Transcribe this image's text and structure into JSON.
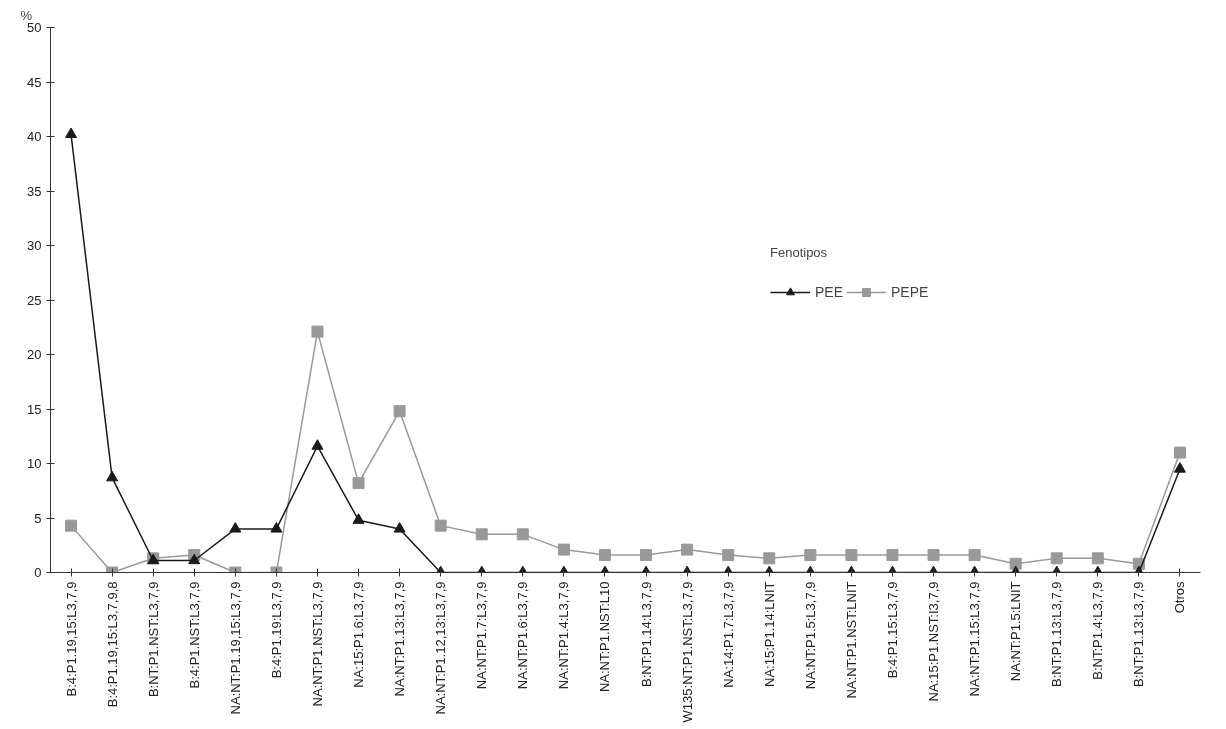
{
  "chart_data": {
    "type": "line",
    "ylabel": "%",
    "legend_title": "Fenotipos",
    "legend": "right",
    "grid": false,
    "categories": [
      "B:4:P1.19,15:L3,7,9",
      "B:4:P1.19,15:L3,7,9,8",
      "B:NT:P1.NST:L3,7,9",
      "B:4:P1.NST:L3,7,9",
      "NA:NT:P1.19,15:L3,7,9",
      "B:4:P1.19:L3,7,9",
      "NA:NT:P1.NST:L3,7,9",
      "NA:15:P1.6:L3,7,9",
      "NA:NT:P1.13:L3,7,9",
      "NA:NT:P1.12,13:L3,7,9",
      "NA:NT:P1.7:L3,7,9",
      "NA:NT:P1.6:L3,7,9",
      "NA:NT:P1.4:L3,7,9",
      "NA:NT:P1.NST:L10",
      "B:NT:P1.14:L3,7,9",
      "W135:NT:P1.NST:L3,7,9",
      "NA:14:P1.7:L3,7,9",
      "NA:15:P1.14:LNIT",
      "NA:NT:P1.5:L3,7,9",
      "NA:NT:P1.NST:LNIT",
      "B:4:P1.15:L3,7,9",
      "NA:15:P1.NST:I3,7,9",
      "NA:NT:P1.15:L3,7,9",
      "NA:NT:P1.5:LNIT",
      "B:NT:P1.13:L3,7,9",
      "B:NT:P1.4:L3,7,9",
      "B:NT:P1.13:L3,7,9",
      "Otros"
    ],
    "ylim": [
      0,
      50
    ],
    "yticks": [
      0,
      5,
      10,
      15,
      20,
      25,
      30,
      35,
      40,
      45,
      50
    ],
    "series": [
      {
        "name": "PEE",
        "color": "#1a1a1a",
        "marker": "triangle",
        "values": [
          40.2,
          8.7,
          1.1,
          1.1,
          4.0,
          4.0,
          11.6,
          4.8,
          4.0,
          0,
          0,
          0,
          0,
          0,
          0,
          0,
          0,
          0,
          0,
          0,
          0,
          0,
          0,
          0,
          0,
          0,
          0,
          9.5
        ]
      },
      {
        "name": "PEPE",
        "color": "#999999",
        "marker": "square",
        "values": [
          4.3,
          0,
          1.3,
          1.6,
          0,
          0,
          22.1,
          8.2,
          14.8,
          4.3,
          3.5,
          3.5,
          2.1,
          1.6,
          1.6,
          2.1,
          1.6,
          1.3,
          1.6,
          1.6,
          1.6,
          1.6,
          1.6,
          0.8,
          1.3,
          1.3,
          0.8,
          11.0
        ]
      }
    ]
  }
}
